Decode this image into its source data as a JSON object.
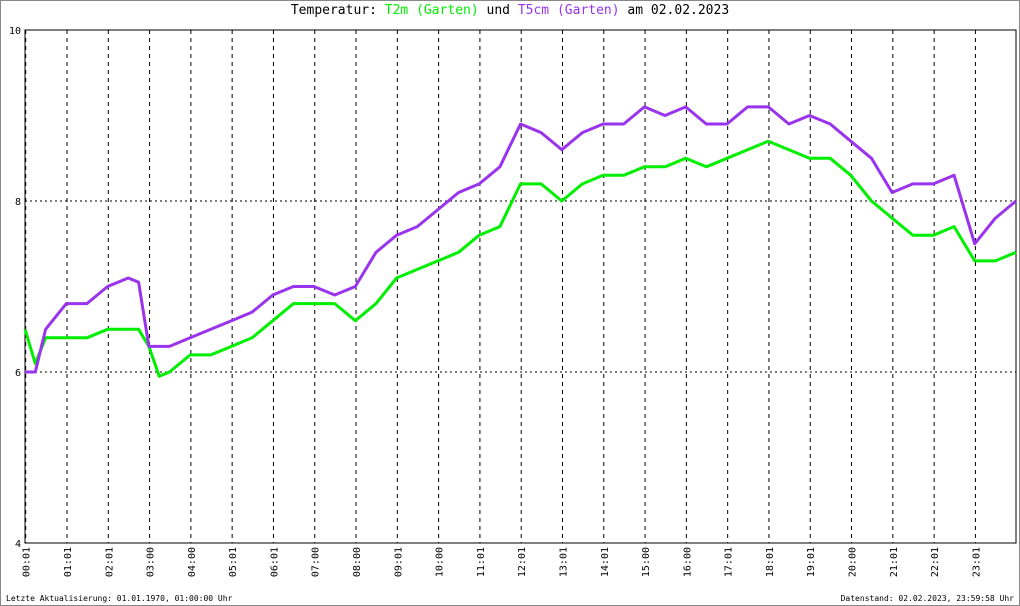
{
  "chart_data": {
    "type": "line",
    "title_prefix": "Temperatur:",
    "title_join": "und",
    "title_suffix": "am 02.02.2023",
    "footer_left": "Letzte Aktualisierung: 01.01.1970, 01:00:00 Uhr",
    "footer_right": "Datenstand: 02.02.2023, 23:59:58 Uhr",
    "x": [
      0,
      0.25,
      0.5,
      1,
      1.5,
      2,
      2.5,
      2.75,
      3,
      3.25,
      3.5,
      4,
      4.5,
      5,
      5.5,
      6,
      6.5,
      7,
      7.5,
      8,
      8.5,
      9,
      9.5,
      10,
      10.5,
      11,
      11.5,
      12,
      12.5,
      13,
      13.5,
      14,
      14.5,
      15,
      15.5,
      16,
      16.5,
      17,
      17.5,
      18,
      18.5,
      19,
      19.5,
      20,
      20.5,
      21,
      21.5,
      22,
      22.5,
      23,
      23.5,
      24
    ],
    "series": [
      {
        "name": "T2m (Garten)",
        "color": "#00ee00",
        "values": [
          6.5,
          6.1,
          6.4,
          6.4,
          6.4,
          6.5,
          6.5,
          6.5,
          6.3,
          5.95,
          6.0,
          6.2,
          6.2,
          6.3,
          6.4,
          6.6,
          6.8,
          6.8,
          6.8,
          6.6,
          6.8,
          7.1,
          7.2,
          7.3,
          7.4,
          7.6,
          7.7,
          8.2,
          8.2,
          8.0,
          8.2,
          8.3,
          8.3,
          8.4,
          8.4,
          8.5,
          8.4,
          8.5,
          8.6,
          8.7,
          8.6,
          8.5,
          8.5,
          8.3,
          8.0,
          7.8,
          7.6,
          7.6,
          7.7,
          7.3,
          7.3,
          7.4
        ]
      },
      {
        "name": "T5cm (Garten)",
        "color": "#9933ee",
        "values": [
          6.0,
          6.0,
          6.5,
          6.8,
          6.8,
          7.0,
          7.1,
          7.05,
          6.3,
          6.3,
          6.3,
          6.4,
          6.5,
          6.6,
          6.7,
          6.9,
          7.0,
          7.0,
          6.9,
          7.0,
          7.4,
          7.6,
          7.7,
          7.9,
          8.1,
          8.2,
          8.4,
          8.9,
          8.8,
          8.6,
          8.8,
          8.9,
          8.9,
          9.1,
          9.0,
          9.1,
          8.9,
          8.9,
          9.1,
          9.1,
          8.9,
          9.0,
          8.9,
          8.7,
          8.5,
          8.1,
          8.2,
          8.2,
          8.3,
          7.5,
          7.8,
          8.0
        ]
      }
    ],
    "xlim": [
      0,
      24
    ],
    "ylim": [
      4,
      10
    ],
    "yticks": [
      4,
      6,
      8,
      10
    ],
    "xticks": [
      {
        "value": 0.017,
        "label": "00:01"
      },
      {
        "value": 1.017,
        "label": "01:01"
      },
      {
        "value": 2.017,
        "label": "02:01"
      },
      {
        "value": 3.017,
        "label": "03:00"
      },
      {
        "value": 4.017,
        "label": "04:00"
      },
      {
        "value": 5.017,
        "label": "05:01"
      },
      {
        "value": 6.017,
        "label": "06:01"
      },
      {
        "value": 7.017,
        "label": "07:00"
      },
      {
        "value": 8.017,
        "label": "08:00"
      },
      {
        "value": 9.017,
        "label": "09:01"
      },
      {
        "value": 10.017,
        "label": "10:00"
      },
      {
        "value": 11.017,
        "label": "11:01"
      },
      {
        "value": 12.017,
        "label": "12:01"
      },
      {
        "value": 13.017,
        "label": "13:01"
      },
      {
        "value": 14.017,
        "label": "14:01"
      },
      {
        "value": 15.017,
        "label": "15:00"
      },
      {
        "value": 16.017,
        "label": "16:00"
      },
      {
        "value": 17.017,
        "label": "17:01"
      },
      {
        "value": 18.017,
        "label": "18:01"
      },
      {
        "value": 19.017,
        "label": "19:01"
      },
      {
        "value": 20.017,
        "label": "20:00"
      },
      {
        "value": 21.017,
        "label": "21:01"
      },
      {
        "value": 22.017,
        "label": "22:01"
      },
      {
        "value": 23.017,
        "label": "23:01"
      }
    ],
    "grid": true
  }
}
